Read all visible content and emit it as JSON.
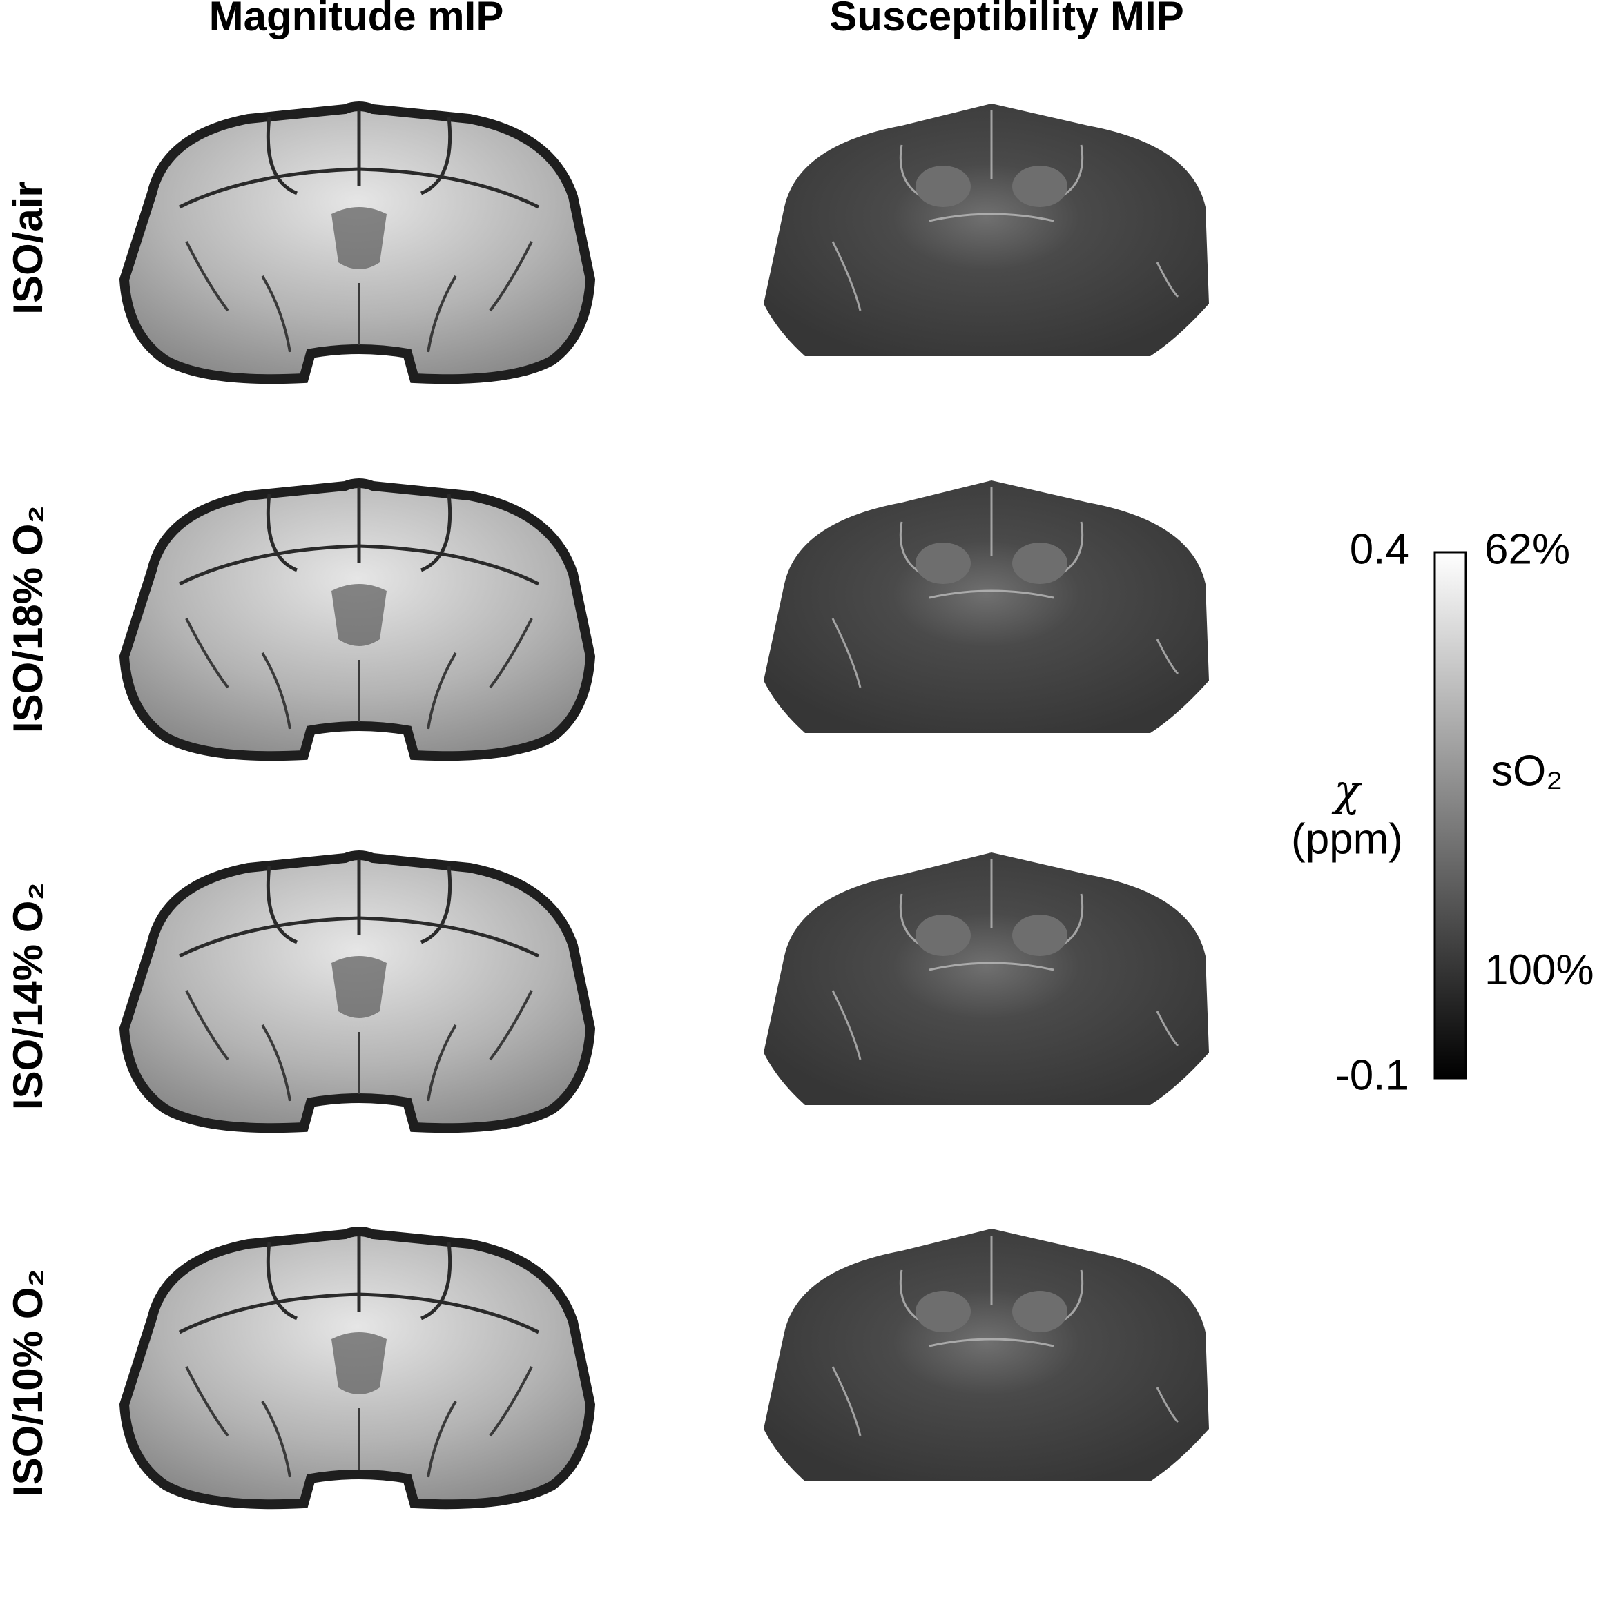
{
  "columns": [
    "Magnitude mIP",
    "Susceptibility MIP"
  ],
  "rows": [
    "ISO/air",
    "ISO/18% O₂",
    "ISO/14% O₂",
    "ISO/10% O₂"
  ],
  "colorbar": {
    "symbol": "χ",
    "unit": "(ppm)",
    "clim": [
      -0.1,
      0.4
    ],
    "ticks": [
      -0.1,
      0.4
    ],
    "so2_label": "sO₂",
    "so2_ticks": [
      {
        "value": 0.4,
        "label": "62%"
      },
      {
        "value": 0,
        "label": "100%"
      }
    ]
  }
}
